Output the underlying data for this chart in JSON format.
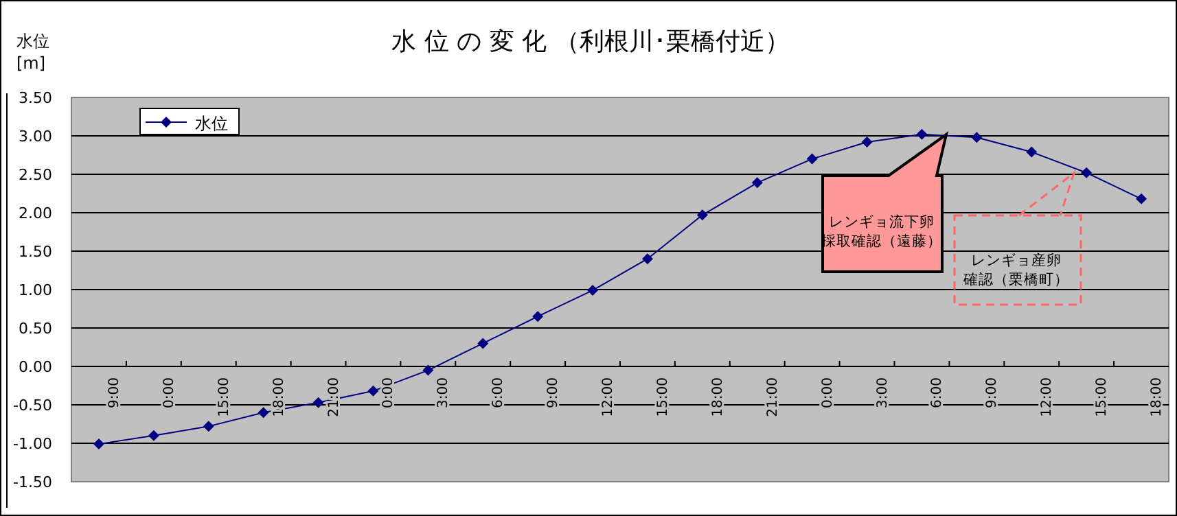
{
  "chart_data": {
    "type": "line",
    "title": "水 位 の 変 化 （利根川･栗橋付近）",
    "ylabel": "水位\n[m]",
    "categories": [
      "9:00",
      "0:00",
      "15:00",
      "18:00",
      "21:00",
      "0:00",
      "3:00",
      "6:00",
      "9:00",
      "12:00",
      "15:00",
      "18:00",
      "21:00",
      "0:00",
      "3:00",
      "6:00",
      "9:00",
      "12:00",
      "15:00",
      "18:00"
    ],
    "series": [
      {
        "name": "水位",
        "color": "#000080",
        "values": [
          -1.01,
          -0.9,
          -0.78,
          -0.6,
          -0.47,
          -0.32,
          -0.05,
          0.3,
          0.65,
          0.99,
          1.4,
          1.97,
          2.39,
          2.7,
          2.92,
          3.02,
          2.98,
          2.79,
          2.52,
          2.18
        ]
      }
    ],
    "ylim": [
      -1.5,
      3.5
    ],
    "yticks": [
      {
        "value": -1.5,
        "label": "-1.50"
      },
      {
        "value": -1,
        "label": "-1.00"
      },
      {
        "value": -0.5,
        "label": "-0.50"
      },
      {
        "value": 0,
        "label": "0.00"
      },
      {
        "value": 0.5,
        "label": "0.50"
      },
      {
        "value": 1,
        "label": "1.00"
      },
      {
        "value": 1.5,
        "label": "1.50"
      },
      {
        "value": 2,
        "label": "2.00"
      },
      {
        "value": 2.5,
        "label": "2.50"
      },
      {
        "value": 3,
        "label": "3.00"
      },
      {
        "value": 3.5,
        "label": "3.50"
      }
    ],
    "grid": "y",
    "legend": "top left",
    "marker": "diamond",
    "line_style": "solid",
    "annotations": [
      "レンギョ流下卵採取確認（遠藤）",
      "レンギョ産卵確認（栗橋町）"
    ]
  }
}
